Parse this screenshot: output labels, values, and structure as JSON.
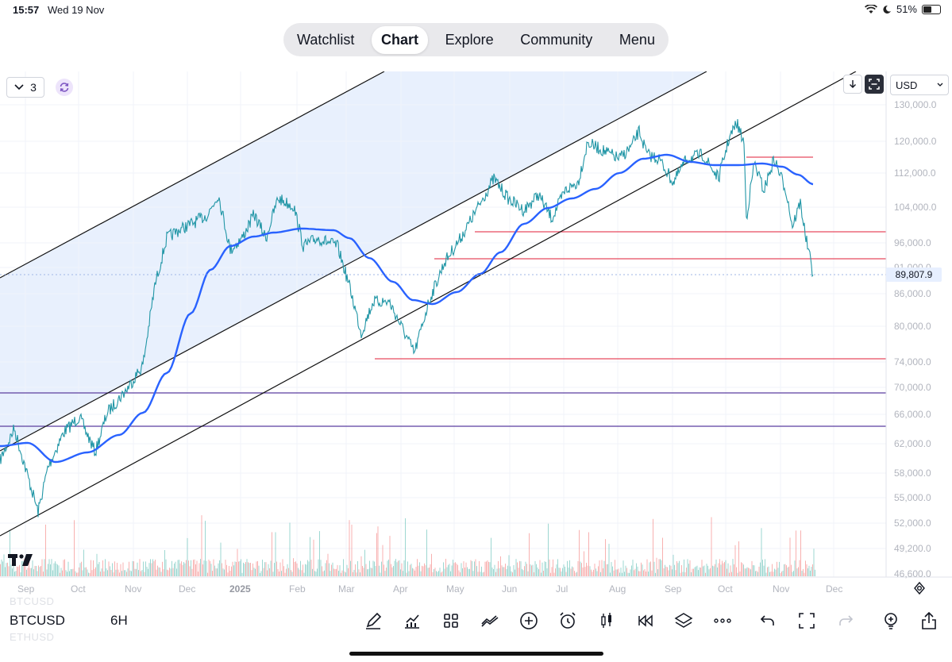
{
  "status_bar": {
    "time": "15:57",
    "date": "Wed 19 Nov",
    "battery_text": "51%",
    "battery_level": 0.51
  },
  "nav": {
    "tabs": [
      "Watchlist",
      "Chart",
      "Explore",
      "Community",
      "Menu"
    ],
    "active": "Chart"
  },
  "controls": {
    "layout_count": "3",
    "currency": "USD"
  },
  "chart": {
    "last_price": "89,807.9",
    "price_axis": [
      "130,000.0",
      "120,000.0",
      "112,000.0",
      "104,000.0",
      "96,000.0",
      "91,000.0",
      "86,000.0",
      "80,000.0",
      "74,000.0",
      "70,000.0",
      "66,000.0",
      "62,000.0",
      "58,000.0",
      "55,000.0",
      "52,000.0",
      "49,200.0",
      "46,600.0"
    ],
    "time_axis": [
      "Sep",
      "Oct",
      "Nov",
      "Dec",
      "2025",
      "Feb",
      "Mar",
      "Apr",
      "May",
      "Jun",
      "Jul",
      "Aug",
      "Sep",
      "Oct",
      "Nov",
      "Dec"
    ],
    "colors": {
      "price_line": "#2196a6",
      "ma_line": "#2962ff",
      "support": "#e84a5f",
      "purple_line": "#5b3fa0",
      "channel_fill": "#e8f0fd",
      "vol_up": "#26a69a",
      "vol_down": "#ef5350"
    }
  },
  "bottom": {
    "symbol": "BTCUSD",
    "interval": "6H",
    "ghost_above": "BTCUSD",
    "ghost_below": "ETHUSD",
    "tools": [
      "draw-icon",
      "indicators-icon",
      "templates-icon",
      "compare-icon",
      "add-icon",
      "alert-icon",
      "candles-icon",
      "replay-icon",
      "layers-icon",
      "more-icon",
      "undo-icon",
      "fullscreen-icon",
      "redo-icon",
      "idea-icon",
      "share-icon"
    ]
  }
}
